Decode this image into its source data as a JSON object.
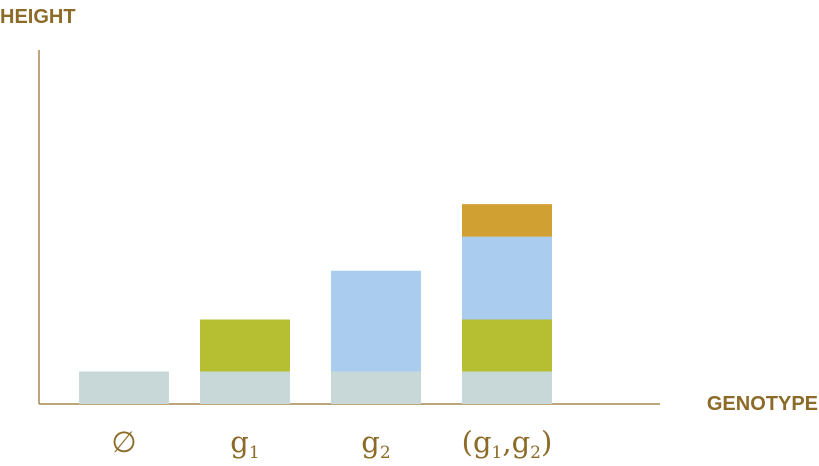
{
  "chart_data": {
    "type": "bar",
    "stacked": true,
    "ylabel": "HEIGHT",
    "xlabel": "GENOTYPE",
    "categories": [
      {
        "parts": [
          {
            "text": "∅",
            "sub": false
          }
        ]
      },
      {
        "parts": [
          {
            "text": "g",
            "sub": false
          },
          {
            "text": "1",
            "sub": true
          }
        ]
      },
      {
        "parts": [
          {
            "text": "g",
            "sub": false
          },
          {
            "text": "2",
            "sub": true
          }
        ]
      },
      {
        "parts": [
          {
            "text": "(g",
            "sub": false
          },
          {
            "text": "1",
            "sub": true
          },
          {
            "text": ",g",
            "sub": false
          },
          {
            "text": "2",
            "sub": true
          },
          {
            "text": ")",
            "sub": false
          }
        ]
      }
    ],
    "ylim": [
      0,
      11
    ],
    "grid": false,
    "series": [
      {
        "color": "#c8d8d8",
        "values": [
          1,
          1,
          1,
          1
        ]
      },
      {
        "color": "#b6bf32",
        "values": [
          0,
          1.6,
          0,
          1.6
        ]
      },
      {
        "color": "#aacdef",
        "values": [
          0,
          0,
          3.1,
          2.55
        ]
      },
      {
        "color": "#d0a033",
        "values": [
          0,
          0,
          0,
          1.0
        ]
      }
    ]
  }
}
